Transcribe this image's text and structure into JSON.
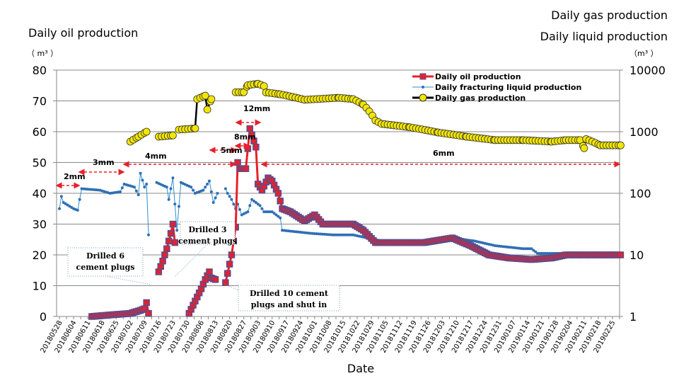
{
  "chart_data": {
    "type": "line",
    "title_left": "Daily oil production",
    "unit_left": "（ m³ ）",
    "title_right_1": "Daily gas production",
    "title_right_2": "Daily liquid production",
    "unit_right": "（m³ ）",
    "xlabel": "Date",
    "x_unit": "days since 20180528",
    "x_ticks": [
      "20180528",
      "20180604",
      "20180611",
      "20180618",
      "20180625",
      "20180702",
      "20180709",
      "20180716",
      "20180723",
      "20180730",
      "20180806",
      "20180813",
      "20180820",
      "20180827",
      "20180903",
      "20180910",
      "20180917",
      "20180924",
      "20181001",
      "20181008",
      "20181015",
      "20181022",
      "20181029",
      "20181105",
      "20181112",
      "20181119",
      "20181126",
      "20181203",
      "20181210",
      "20181217",
      "20181224",
      "20181231",
      "20190107",
      "20190114",
      "20190121",
      "20190128",
      "20190204",
      "20190211",
      "20190218",
      "20190225"
    ],
    "ylim_left": [
      0,
      80
    ],
    "yticks_left": [
      "0",
      "10",
      "20",
      "30",
      "40",
      "50",
      "60",
      "70",
      "80"
    ],
    "ylim_right_log": [
      1,
      10000
    ],
    "yticks_right": [
      "1",
      "10",
      "100",
      "1000",
      "10000"
    ],
    "grid": true,
    "legend": {
      "position": "top-right",
      "entries": [
        "Daily oil production",
        "Daily fracturing liquid production",
        "Daily gas production"
      ]
    },
    "series": [
      {
        "name": "Daily oil production",
        "axis": "left",
        "color": "#e8202a",
        "marker": "square",
        "segments": [
          [
            [
              16,
              0
            ],
            [
              25,
              0.5
            ],
            [
              35,
              1
            ],
            [
              40,
              2
            ],
            [
              42,
              2.5
            ],
            [
              43,
              4.5
            ],
            [
              44,
              1
            ]
          ],
          [
            [
              49,
              14.5
            ],
            [
              51,
              18
            ],
            [
              53,
              22
            ],
            [
              55,
              27
            ],
            [
              56,
              30
            ],
            [
              57,
              24
            ]
          ],
          [
            [
              64,
              1
            ],
            [
              67,
              5
            ],
            [
              70,
              9
            ],
            [
              72,
              12
            ],
            [
              74,
              14.5
            ],
            [
              75,
              12.5
            ],
            [
              77,
              12
            ]
          ],
          [
            [
              82,
              11
            ],
            [
              85,
              20
            ],
            [
              87,
              29
            ],
            [
              88,
              50
            ],
            [
              89,
              48
            ],
            [
              92,
              48
            ],
            [
              94,
              61
            ],
            [
              95,
              59
            ],
            [
              97,
              55
            ],
            [
              98,
              43
            ],
            [
              100,
              41
            ],
            [
              103,
              45
            ],
            [
              105,
              44
            ],
            [
              108,
              40
            ],
            [
              110,
              35
            ],
            [
              114,
              34
            ],
            [
              121,
              31
            ],
            [
              126,
              33
            ],
            [
              130,
              30
            ],
            [
              145,
              30
            ],
            [
              150,
              28
            ],
            [
              156,
              24
            ],
            [
              180,
              24
            ],
            [
              194,
              25.5
            ],
            [
              203,
              23
            ],
            [
              212,
              20
            ],
            [
              222,
              19
            ],
            [
              233,
              18.5
            ],
            [
              243,
              19
            ],
            [
              250,
              20
            ],
            [
              277,
              20
            ]
          ]
        ]
      },
      {
        "name": "Daily fracturing liquid production",
        "axis": "left",
        "color": "#2e8fd0",
        "marker": "dot",
        "segments": [
          [
            [
              0,
              35
            ],
            [
              1,
              39
            ],
            [
              2,
              37
            ],
            [
              7,
              35
            ],
            [
              9,
              34.5
            ],
            [
              11,
              41.5
            ],
            [
              20,
              41
            ],
            [
              25,
              40
            ],
            [
              30,
              40.5
            ],
            [
              32,
              43
            ],
            [
              37,
              42
            ],
            [
              39,
              39.5
            ],
            [
              40,
              46.5
            ],
            [
              42,
              42
            ],
            [
              43,
              43
            ],
            [
              44,
              26.5
            ]
          ],
          [
            [
              48,
              43.5
            ],
            [
              53,
              42
            ],
            [
              54,
              38
            ],
            [
              56,
              45
            ],
            [
              58,
              28
            ],
            [
              60,
              43.5
            ],
            [
              65,
              42
            ],
            [
              67,
              40
            ],
            [
              71,
              41
            ],
            [
              74,
              44
            ],
            [
              76,
              37
            ],
            [
              78,
              40
            ]
          ],
          [
            [
              82,
              41.5
            ],
            [
              83,
              40
            ],
            [
              85,
              38
            ],
            [
              87,
              35
            ],
            [
              88,
              36.5
            ],
            [
              90,
              33
            ],
            [
              93,
              34
            ],
            [
              95,
              38
            ],
            [
              97,
              37
            ],
            [
              99,
              36
            ],
            [
              101,
              34
            ],
            [
              105,
              34
            ],
            [
              109,
              32
            ],
            [
              110,
              28
            ],
            [
              117,
              27.5
            ],
            [
              124,
              27
            ],
            [
              135,
              26.5
            ],
            [
              145,
              26.5
            ],
            [
              152,
              25.5
            ],
            [
              159,
              24.5
            ],
            [
              180,
              24.5
            ],
            [
              194,
              25.5
            ],
            [
              205,
              24.5
            ],
            [
              215,
              23
            ],
            [
              229,
              22
            ],
            [
              233,
              22
            ],
            [
              236,
              20.5
            ],
            [
              277,
              20.5
            ]
          ]
        ]
      },
      {
        "name": "Daily gas production",
        "axis": "right",
        "color": "#f2e600",
        "marker": "circle",
        "segments": [
          [
            [
              35,
              690
            ],
            [
              39,
              830
            ],
            [
              43,
              1000
            ]
          ],
          [
            [
              49,
              830
            ],
            [
              56,
              870
            ]
          ],
          [
            [
              59,
              1080
            ],
            [
              67,
              1130
            ],
            [
              68,
              3380
            ],
            [
              72,
              3850
            ],
            [
              73,
              2290
            ],
            [
              75,
              3380
            ]
          ],
          [
            [
              87,
              4370
            ],
            [
              91,
              4370
            ],
            [
              93,
              5700
            ],
            [
              98,
              6000
            ],
            [
              101,
              5500
            ],
            [
              102,
              4340
            ],
            [
              109,
              4050
            ],
            [
              121,
              3300
            ],
            [
              138,
              3550
            ],
            [
              145,
              3380
            ],
            [
              150,
              2750
            ],
            [
              156,
              1520
            ],
            [
              159,
              1340
            ],
            [
              173,
              1180
            ],
            [
              187,
              970
            ],
            [
              201,
              830
            ],
            [
              215,
              730
            ],
            [
              229,
              730
            ],
            [
              243,
              690
            ],
            [
              250,
              730
            ],
            [
              257,
              730
            ],
            [
              259,
              540
            ],
            [
              260,
              760
            ],
            [
              267,
              600
            ],
            [
              277,
              600
            ]
          ]
        ]
      }
    ],
    "annotations": [
      "Drilled 6 cement plugs",
      "Drilled 3 cement plugs",
      "Drilled 10 cement plugs and shut in"
    ],
    "annotation_lines": [
      [
        "Drilled 6",
        "cement plugs"
      ],
      [
        "Drilled 3",
        "cement plugs"
      ],
      [
        "Drilled 10 cement",
        "plugs and shut in"
      ]
    ],
    "choke_sizes": [
      "2mm",
      "3mm",
      "4mm",
      "5mm",
      "8mm",
      "12mm",
      "6mm"
    ]
  }
}
